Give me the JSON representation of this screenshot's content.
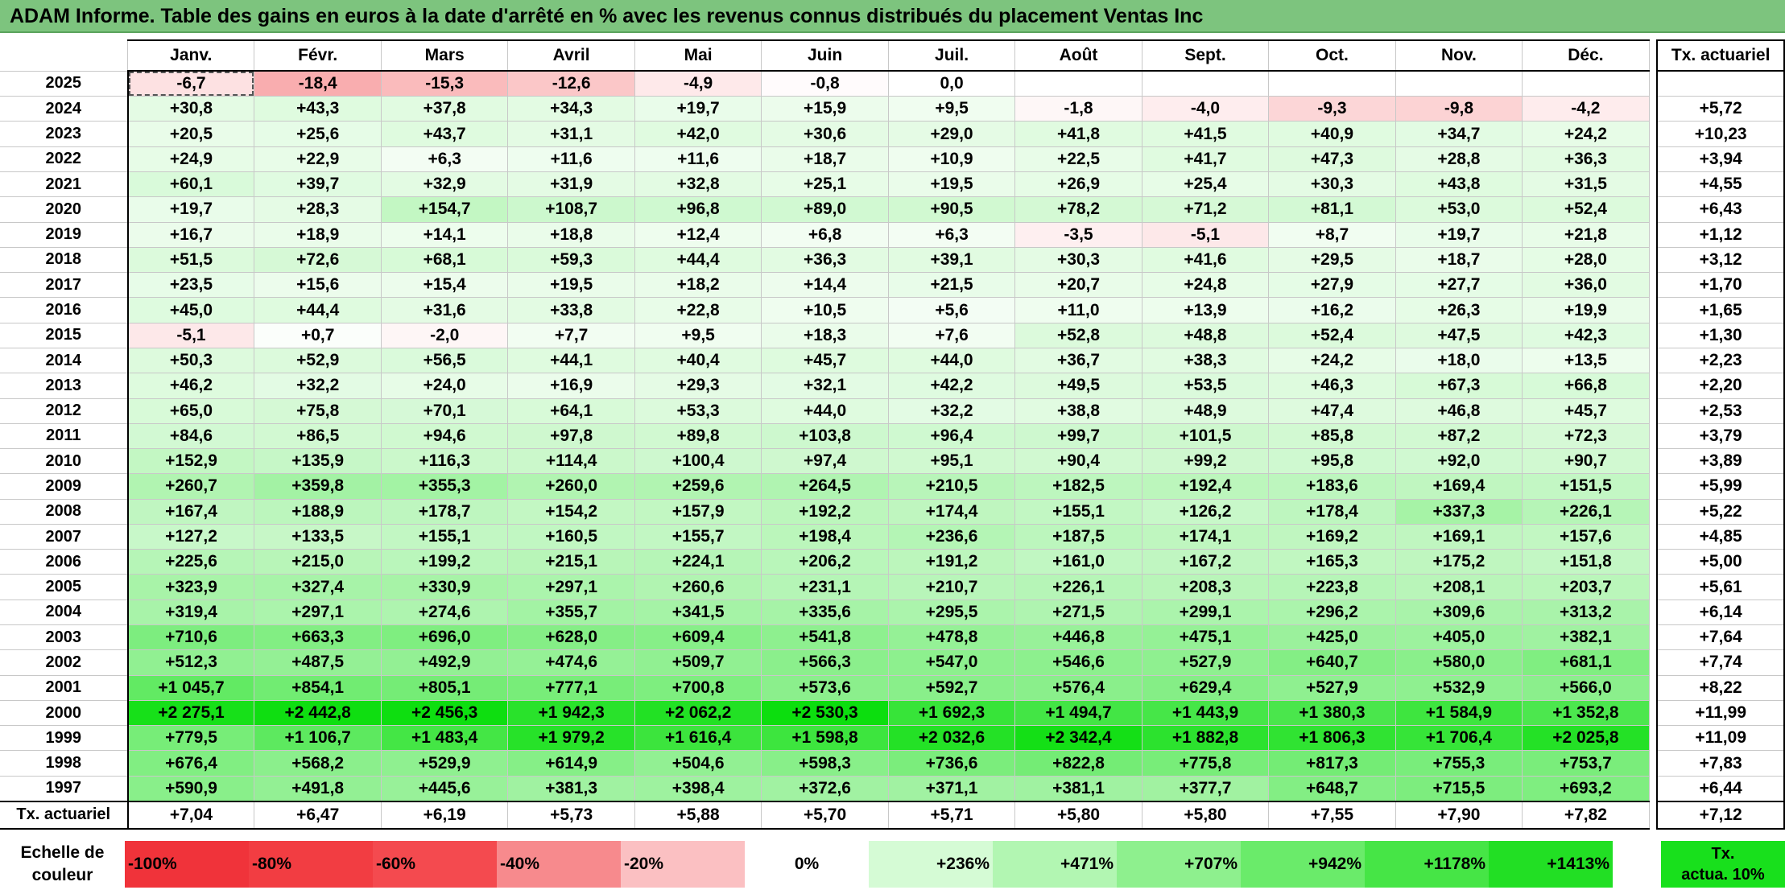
{
  "title": "ADAM Informe. Table des gains en euros à la date d'arrêté en % avec les revenus connus distribués du placement Ventas Inc",
  "columns": [
    "Janv.",
    "Févr.",
    "Mars",
    "Avril",
    "Mai",
    "Juin",
    "Juil.",
    "Août",
    "Sept.",
    "Oct.",
    "Nov.",
    "Déc."
  ],
  "rate_header": "Tx. actuariel",
  "rows": [
    {
      "year": "2025",
      "v": [
        "-6,7",
        "-18,4",
        "-15,3",
        "-12,6",
        "-4,9",
        "-0,8",
        "0,0",
        "",
        "",
        "",
        "",
        ""
      ],
      "rate": ""
    },
    {
      "year": "2024",
      "v": [
        "+30,8",
        "+43,3",
        "+37,8",
        "+34,3",
        "+19,7",
        "+15,9",
        "+9,5",
        "-1,8",
        "-4,0",
        "-9,3",
        "-9,8",
        "-4,2"
      ],
      "rate": "+5,72"
    },
    {
      "year": "2023",
      "v": [
        "+20,5",
        "+25,6",
        "+43,7",
        "+31,1",
        "+42,0",
        "+30,6",
        "+29,0",
        "+41,8",
        "+41,5",
        "+40,9",
        "+34,7",
        "+24,2"
      ],
      "rate": "+10,23"
    },
    {
      "year": "2022",
      "v": [
        "+24,9",
        "+22,9",
        "+6,3",
        "+11,6",
        "+11,6",
        "+18,7",
        "+10,9",
        "+22,5",
        "+41,7",
        "+47,3",
        "+28,8",
        "+36,3"
      ],
      "rate": "+3,94"
    },
    {
      "year": "2021",
      "v": [
        "+60,1",
        "+39,7",
        "+32,9",
        "+31,9",
        "+32,8",
        "+25,1",
        "+19,5",
        "+26,9",
        "+25,4",
        "+30,3",
        "+43,8",
        "+31,5"
      ],
      "rate": "+4,55"
    },
    {
      "year": "2020",
      "v": [
        "+19,7",
        "+28,3",
        "+154,7",
        "+108,7",
        "+96,8",
        "+89,0",
        "+90,5",
        "+78,2",
        "+71,2",
        "+81,1",
        "+53,0",
        "+52,4"
      ],
      "rate": "+6,43"
    },
    {
      "year": "2019",
      "v": [
        "+16,7",
        "+18,9",
        "+14,1",
        "+18,8",
        "+12,4",
        "+6,8",
        "+6,3",
        "-3,5",
        "-5,1",
        "+8,7",
        "+19,7",
        "+21,8"
      ],
      "rate": "+1,12"
    },
    {
      "year": "2018",
      "v": [
        "+51,5",
        "+72,6",
        "+68,1",
        "+59,3",
        "+44,4",
        "+36,3",
        "+39,1",
        "+30,3",
        "+41,6",
        "+29,5",
        "+18,7",
        "+28,0"
      ],
      "rate": "+3,12"
    },
    {
      "year": "2017",
      "v": [
        "+23,5",
        "+15,6",
        "+15,4",
        "+19,5",
        "+18,2",
        "+14,4",
        "+21,5",
        "+20,7",
        "+24,8",
        "+27,9",
        "+27,7",
        "+36,0"
      ],
      "rate": "+1,70"
    },
    {
      "year": "2016",
      "v": [
        "+45,0",
        "+44,4",
        "+31,6",
        "+33,8",
        "+22,8",
        "+10,5",
        "+5,6",
        "+11,0",
        "+13,9",
        "+16,2",
        "+26,3",
        "+19,9"
      ],
      "rate": "+1,65"
    },
    {
      "year": "2015",
      "v": [
        "-5,1",
        "+0,7",
        "-2,0",
        "+7,7",
        "+9,5",
        "+18,3",
        "+7,6",
        "+52,8",
        "+48,8",
        "+52,4",
        "+47,5",
        "+42,3"
      ],
      "rate": "+1,30"
    },
    {
      "year": "2014",
      "v": [
        "+50,3",
        "+52,9",
        "+56,5",
        "+44,1",
        "+40,4",
        "+45,7",
        "+44,0",
        "+36,7",
        "+38,3",
        "+24,2",
        "+18,0",
        "+13,5"
      ],
      "rate": "+2,23"
    },
    {
      "year": "2013",
      "v": [
        "+46,2",
        "+32,2",
        "+24,0",
        "+16,9",
        "+29,3",
        "+32,1",
        "+42,2",
        "+49,5",
        "+53,5",
        "+46,3",
        "+67,3",
        "+66,8"
      ],
      "rate": "+2,20"
    },
    {
      "year": "2012",
      "v": [
        "+65,0",
        "+75,8",
        "+70,1",
        "+64,1",
        "+53,3",
        "+44,0",
        "+32,2",
        "+38,8",
        "+48,9",
        "+47,4",
        "+46,8",
        "+45,7"
      ],
      "rate": "+2,53"
    },
    {
      "year": "2011",
      "v": [
        "+84,6",
        "+86,5",
        "+94,6",
        "+97,8",
        "+89,8",
        "+103,8",
        "+96,4",
        "+99,7",
        "+101,5",
        "+85,8",
        "+87,2",
        "+72,3"
      ],
      "rate": "+3,79"
    },
    {
      "year": "2010",
      "v": [
        "+152,9",
        "+135,9",
        "+116,3",
        "+114,4",
        "+100,4",
        "+97,4",
        "+95,1",
        "+90,4",
        "+99,2",
        "+95,8",
        "+92,0",
        "+90,7"
      ],
      "rate": "+3,89"
    },
    {
      "year": "2009",
      "v": [
        "+260,7",
        "+359,8",
        "+355,3",
        "+260,0",
        "+259,6",
        "+264,5",
        "+210,5",
        "+182,5",
        "+192,4",
        "+183,6",
        "+169,4",
        "+151,5"
      ],
      "rate": "+5,99"
    },
    {
      "year": "2008",
      "v": [
        "+167,4",
        "+188,9",
        "+178,7",
        "+154,2",
        "+157,9",
        "+192,2",
        "+174,4",
        "+155,1",
        "+126,2",
        "+178,4",
        "+337,3",
        "+226,1"
      ],
      "rate": "+5,22"
    },
    {
      "year": "2007",
      "v": [
        "+127,2",
        "+133,5",
        "+155,1",
        "+160,5",
        "+155,7",
        "+198,4",
        "+236,6",
        "+187,5",
        "+174,1",
        "+169,2",
        "+169,1",
        "+157,6"
      ],
      "rate": "+4,85"
    },
    {
      "year": "2006",
      "v": [
        "+225,6",
        "+215,0",
        "+199,2",
        "+215,1",
        "+224,1",
        "+206,2",
        "+191,2",
        "+161,0",
        "+167,2",
        "+165,3",
        "+175,2",
        "+151,8"
      ],
      "rate": "+5,00"
    },
    {
      "year": "2005",
      "v": [
        "+323,9",
        "+327,4",
        "+330,9",
        "+297,1",
        "+260,6",
        "+231,1",
        "+210,7",
        "+226,1",
        "+208,3",
        "+223,8",
        "+208,1",
        "+203,7"
      ],
      "rate": "+5,61"
    },
    {
      "year": "2004",
      "v": [
        "+319,4",
        "+297,1",
        "+274,6",
        "+355,7",
        "+341,5",
        "+335,6",
        "+295,5",
        "+271,5",
        "+299,1",
        "+296,2",
        "+309,6",
        "+313,2"
      ],
      "rate": "+6,14"
    },
    {
      "year": "2003",
      "v": [
        "+710,6",
        "+663,3",
        "+696,0",
        "+628,0",
        "+609,4",
        "+541,8",
        "+478,8",
        "+446,8",
        "+475,1",
        "+425,0",
        "+405,0",
        "+382,1"
      ],
      "rate": "+7,64"
    },
    {
      "year": "2002",
      "v": [
        "+512,3",
        "+487,5",
        "+492,9",
        "+474,6",
        "+509,7",
        "+566,3",
        "+547,0",
        "+546,6",
        "+527,9",
        "+640,7",
        "+580,0",
        "+681,1"
      ],
      "rate": "+7,74"
    },
    {
      "year": "2001",
      "v": [
        "+1 045,7",
        "+854,1",
        "+805,1",
        "+777,1",
        "+700,8",
        "+573,6",
        "+592,7",
        "+576,4",
        "+629,4",
        "+527,9",
        "+532,9",
        "+566,0"
      ],
      "rate": "+8,22"
    },
    {
      "year": "2000",
      "v": [
        "+2 275,1",
        "+2 442,8",
        "+2 456,3",
        "+1 942,3",
        "+2 062,2",
        "+2 530,3",
        "+1 692,3",
        "+1 494,7",
        "+1 443,9",
        "+1 380,3",
        "+1 584,9",
        "+1 352,8"
      ],
      "rate": "+11,99"
    },
    {
      "year": "1999",
      "v": [
        "+779,5",
        "+1 106,7",
        "+1 483,4",
        "+1 979,2",
        "+1 616,4",
        "+1 598,8",
        "+2 032,6",
        "+2 342,4",
        "+1 882,8",
        "+1 806,3",
        "+1 706,4",
        "+2 025,8"
      ],
      "rate": "+11,09"
    },
    {
      "year": "1998",
      "v": [
        "+676,4",
        "+568,2",
        "+529,9",
        "+614,9",
        "+504,6",
        "+598,3",
        "+736,6",
        "+822,8",
        "+775,8",
        "+817,3",
        "+755,3",
        "+753,7"
      ],
      "rate": "+7,83"
    },
    {
      "year": "1997",
      "v": [
        "+590,9",
        "+491,8",
        "+445,6",
        "+381,3",
        "+398,4",
        "+372,6",
        "+371,1",
        "+381,1",
        "+377,7",
        "+648,7",
        "+715,5",
        "+693,2"
      ],
      "rate": "+6,44"
    }
  ],
  "footer": {
    "label": "Tx. actuariel",
    "v": [
      "+7,04",
      "+6,47",
      "+6,19",
      "+5,73",
      "+5,88",
      "+5,70",
      "+5,71",
      "+5,80",
      "+5,80",
      "+7,55",
      "+7,90",
      "+7,82"
    ],
    "rate": "+7,12"
  },
  "scale": {
    "label_line1": "Echelle de",
    "label_line2": "couleur",
    "items": [
      {
        "label": "-100%",
        "color": "#f0333a",
        "align": "left"
      },
      {
        "label": "-80%",
        "color": "#f23d42",
        "align": "left"
      },
      {
        "label": "-60%",
        "color": "#f44a4f",
        "align": "left"
      },
      {
        "label": "-40%",
        "color": "#f78a8d",
        "align": "left"
      },
      {
        "label": "-20%",
        "color": "#fbc0c2",
        "align": "left"
      },
      {
        "label": "0%",
        "color": "#ffffff",
        "align": "center"
      },
      {
        "label": "+236%",
        "color": "#d5fbd5",
        "align": "right"
      },
      {
        "label": "+471%",
        "color": "#b2f6b2",
        "align": "right"
      },
      {
        "label": "+707%",
        "color": "#8ef08e",
        "align": "right"
      },
      {
        "label": "+942%",
        "color": "#6aeb6a",
        "align": "right"
      },
      {
        "label": "+1178%",
        "color": "#46e546",
        "align": "right"
      },
      {
        "label": "+1413%",
        "color": "#22df24",
        "align": "right"
      }
    ],
    "rate_line1": "Tx.",
    "rate_line2": "actua. 10%"
  }
}
